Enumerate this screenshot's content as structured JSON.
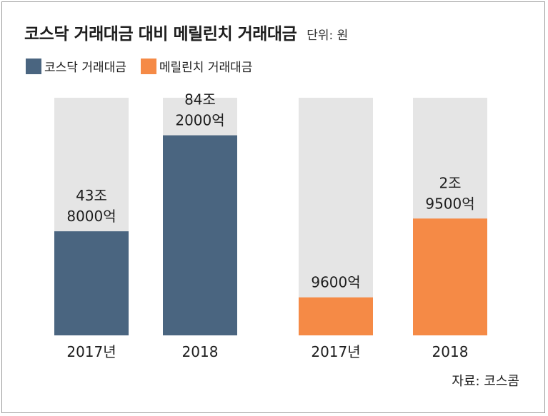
{
  "title": "코스닥 거래대금 대비 메릴린치 거래대금",
  "unit": "단위: 원",
  "source": "자료: 코스콤",
  "colors": {
    "kosdaq": "#4a6580",
    "merrill": "#f58a46",
    "background_bar": "#e5e5e5"
  },
  "legend": [
    {
      "label": "코스닥 거래대금",
      "color": "#4a6580"
    },
    {
      "label": "메릴린치 거래대금",
      "color": "#f58a46"
    }
  ],
  "chart_data": {
    "type": "bar",
    "categories": [
      "2017년",
      "2018",
      "2017년",
      "2018"
    ],
    "series": [
      {
        "name": "코스닥 거래대금",
        "values": [
          438000,
          842000,
          null,
          null
        ],
        "labels": [
          "43조|8000억",
          "84조|2000억",
          "",
          ""
        ]
      },
      {
        "name": "메릴린치 거래대금",
        "values": [
          null,
          null,
          9600,
          29500
        ],
        "labels": [
          "",
          "",
          "9600억",
          "2조|9500억"
        ]
      }
    ],
    "units": "억 원"
  }
}
